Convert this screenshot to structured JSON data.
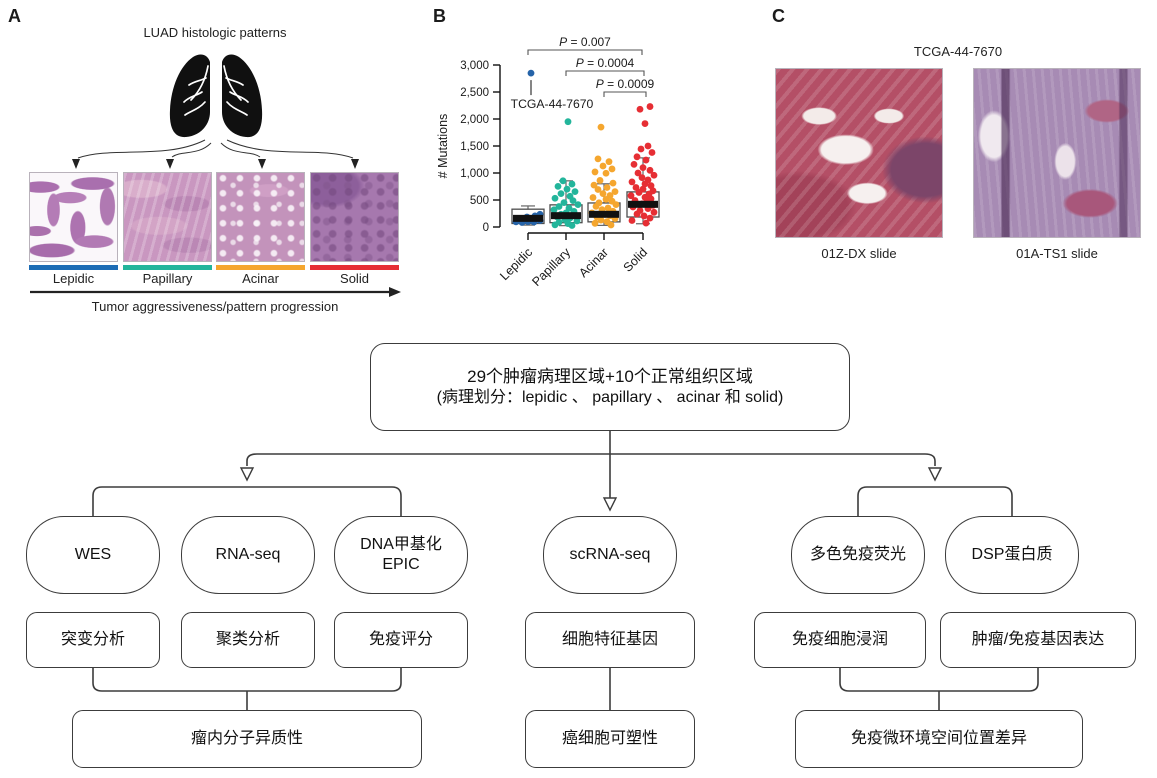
{
  "figure": {
    "panel_a": {
      "label": "A",
      "title": "LUAD histologic patterns",
      "patterns": [
        {
          "name": "Lepidic",
          "color": "#1d6cb5"
        },
        {
          "name": "Papillary",
          "color": "#23b59b"
        },
        {
          "name": "Acinar",
          "color": "#f5a62e"
        },
        {
          "name": "Solid",
          "color": "#e62e34"
        }
      ],
      "axis_caption": "Tumor aggressiveness/pattern progression"
    },
    "panel_b": {
      "label": "B"
    },
    "panel_c": {
      "label": "C",
      "title": "TCGA-44-7670",
      "slides": [
        {
          "label": "01Z-DX slide"
        },
        {
          "label": "01A-TS1 slide"
        }
      ]
    },
    "flowchart": {
      "root": {
        "line1": "29个肿瘤病理区域+10个正常组织区域",
        "line2": "(病理划分：lepidic 、 papillary 、 acinar 和 solid)"
      },
      "assays": [
        {
          "label": "WES"
        },
        {
          "label": "RNA-seq"
        },
        {
          "label": "DNA甲基化",
          "label2": "EPIC"
        },
        {
          "label": "scRNA-seq"
        },
        {
          "label": "多色免疫荧光"
        },
        {
          "label": "DSP蛋白质"
        }
      ],
      "analyses": [
        {
          "label": "突变分析"
        },
        {
          "label": "聚类分析"
        },
        {
          "label": "免疫评分"
        },
        {
          "label": "细胞特征基因"
        },
        {
          "label": "免疫细胞浸润"
        },
        {
          "label": "肿瘤/免疫基因表达"
        }
      ],
      "conclusions": [
        {
          "label": "瘤内分子异质性"
        },
        {
          "label": "癌细胞可塑性"
        },
        {
          "label": "免疫微环境空间位置差异"
        }
      ]
    }
  },
  "chart_data": {
    "type": "scatter",
    "subtype": "boxplot-with-jittered-points",
    "title": "",
    "xlabel": "",
    "ylabel": "# Mutations",
    "ylim": [
      0,
      3000
    ],
    "yticks": [
      0,
      500,
      1000,
      1500,
      2000,
      2500,
      3000
    ],
    "categories": [
      "Lepidic",
      "Papillary",
      "Acinar",
      "Solid"
    ],
    "series": [
      {
        "name": "Lepidic",
        "color": "#2563a8",
        "box": {
          "whisker_low": 35,
          "q1": 65,
          "median": 160,
          "q3": 330,
          "whisker_high": 390
        },
        "points": [
          [
            3,
            2850
          ],
          [
            -12,
            95
          ],
          [
            -6,
            85
          ],
          [
            0,
            100
          ],
          [
            6,
            92
          ],
          [
            12,
            120
          ],
          [
            -8,
            160
          ],
          [
            -1,
            185
          ],
          [
            7,
            205
          ],
          [
            12,
            235
          ]
        ]
      },
      {
        "name": "Papillary",
        "color": "#23b59b",
        "box": {
          "whisker_low": 25,
          "q1": 80,
          "median": 210,
          "q3": 410,
          "whisker_high": 855
        },
        "points": [
          [
            2,
            1950
          ],
          [
            -3,
            855
          ],
          [
            6,
            795
          ],
          [
            -8,
            752
          ],
          [
            1,
            700
          ],
          [
            9,
            655
          ],
          [
            -5,
            618
          ],
          [
            4,
            570
          ],
          [
            -11,
            532
          ],
          [
            7,
            488
          ],
          [
            -2,
            452
          ],
          [
            12,
            415
          ],
          [
            -7,
            380
          ],
          [
            3,
            348
          ],
          [
            -12,
            318
          ],
          [
            8,
            288
          ],
          [
            0,
            262
          ],
          [
            -5,
            235
          ],
          [
            10,
            212
          ],
          [
            -9,
            188
          ],
          [
            4,
            165
          ],
          [
            -1,
            138
          ],
          [
            11,
            112
          ],
          [
            -7,
            88
          ],
          [
            2,
            62
          ],
          [
            -11,
            40
          ],
          [
            6,
            28
          ]
        ]
      },
      {
        "name": "Acinar",
        "color": "#f5a62e",
        "box": {
          "whisker_low": 30,
          "q1": 95,
          "median": 235,
          "q3": 445,
          "whisker_high": 800
        },
        "points": [
          [
            -3,
            1850
          ],
          [
            -6,
            1262
          ],
          [
            5,
            1210
          ],
          [
            -1,
            1130
          ],
          [
            8,
            1075
          ],
          [
            -9,
            1020
          ],
          [
            2,
            995
          ],
          [
            -4,
            862
          ],
          [
            9,
            812
          ],
          [
            -10,
            775
          ],
          [
            3,
            732
          ],
          [
            -6,
            695
          ],
          [
            11,
            655
          ],
          [
            -1,
            618
          ],
          [
            6,
            582
          ],
          [
            -11,
            545
          ],
          [
            2,
            512
          ],
          [
            8,
            478
          ],
          [
            -5,
            448
          ],
          [
            12,
            415
          ],
          [
            -8,
            382
          ],
          [
            4,
            352
          ],
          [
            -2,
            322
          ],
          [
            9,
            292
          ],
          [
            -12,
            262
          ],
          [
            1,
            235
          ],
          [
            6,
            208
          ],
          [
            -7,
            182
          ],
          [
            11,
            155
          ],
          [
            -3,
            128
          ],
          [
            3,
            98
          ],
          [
            -9,
            68
          ],
          [
            7,
            38
          ]
        ]
      },
      {
        "name": "Solid",
        "color": "#e62e34",
        "box": {
          "whisker_low": 60,
          "q1": 185,
          "median": 420,
          "q3": 650,
          "whisker_high": 1280
        },
        "points": [
          [
            -3,
            2180
          ],
          [
            7,
            2230
          ],
          [
            2,
            1915
          ],
          [
            5,
            1500
          ],
          [
            -2,
            1445
          ],
          [
            9,
            1380
          ],
          [
            -6,
            1300
          ],
          [
            3,
            1240
          ],
          [
            -9,
            1160
          ],
          [
            0,
            1100
          ],
          [
            7,
            1050
          ],
          [
            -5,
            1000
          ],
          [
            11,
            958
          ],
          [
            -1,
            915
          ],
          [
            5,
            872
          ],
          [
            -11,
            835
          ],
          [
            2,
            798
          ],
          [
            8,
            765
          ],
          [
            -7,
            732
          ],
          [
            0,
            702
          ],
          [
            10,
            670
          ],
          [
            -4,
            640
          ],
          [
            6,
            610
          ],
          [
            -12,
            580
          ],
          [
            2,
            550
          ],
          [
            8,
            520
          ],
          [
            -8,
            490
          ],
          [
            4,
            460
          ],
          [
            -1,
            430
          ],
          [
            10,
            400
          ],
          [
            -10,
            370
          ],
          [
            5,
            340
          ],
          [
            -3,
            305
          ],
          [
            11,
            272
          ],
          [
            -6,
            240
          ],
          [
            1,
            205
          ],
          [
            7,
            165
          ],
          [
            -11,
            120
          ],
          [
            3,
            72
          ]
        ]
      }
    ],
    "annotation": {
      "category": "Lepidic",
      "value": 2850,
      "text": "TCGA-44-7670"
    },
    "comparisons": [
      {
        "text": "P = 0.007",
        "from": "Lepidic",
        "to": "Solid"
      },
      {
        "text": "P = 0.0004",
        "from": "Papillary",
        "to": "Solid"
      },
      {
        "text": "P = 0.0009",
        "from": "Acinar",
        "to": "Solid"
      }
    ],
    "legend": "none",
    "grid": false
  }
}
